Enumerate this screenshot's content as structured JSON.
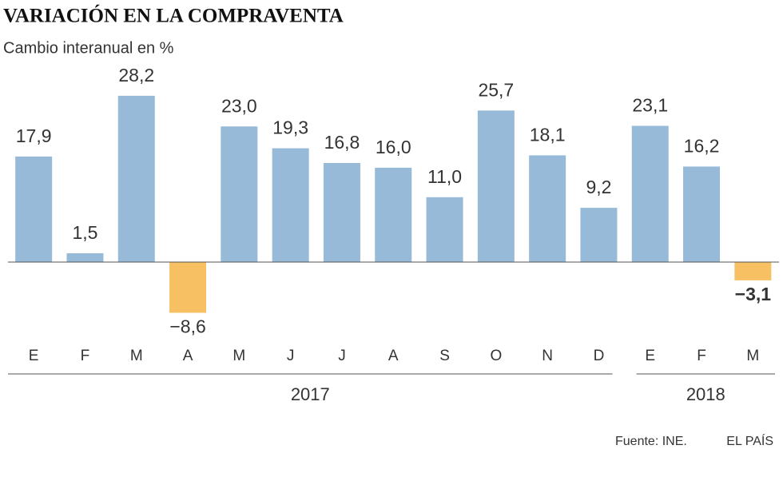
{
  "chart_data": {
    "type": "bar",
    "title": "VARIACIÓN EN LA COMPRAVENTA",
    "subtitle": "Cambio interanual en %",
    "groups": [
      {
        "label": "2017",
        "categories": [
          "E",
          "F",
          "M",
          "A",
          "M",
          "J",
          "J",
          "A",
          "S",
          "O",
          "N",
          "D"
        ]
      },
      {
        "label": "2018",
        "categories": [
          "E",
          "F",
          "M"
        ]
      }
    ],
    "values": [
      17.9,
      1.5,
      28.2,
      -8.6,
      23.0,
      19.3,
      16.8,
      16.0,
      11.0,
      25.7,
      18.1,
      9.2,
      23.1,
      16.2,
      -3.1
    ],
    "value_labels": [
      "17,9",
      "1,5",
      "28,2",
      "−8,6",
      "23,0",
      "19,3",
      "16,8",
      "16,0",
      "11,0",
      "25,7",
      "18,1",
      "9,2",
      "23,1",
      "16,2",
      "−3,1"
    ],
    "color": "#96bad7",
    "negative_color": "#f6c063",
    "ylim": [
      -10,
      30
    ],
    "source": "Fuente: INE.",
    "publisher": "EL PAÍS"
  }
}
